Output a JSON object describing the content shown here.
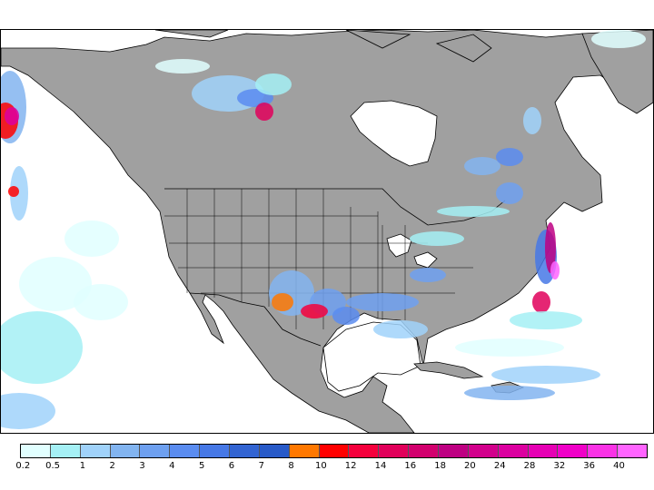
{
  "legend": {
    "labels": [
      "0.2",
      "0.5",
      "1",
      "2",
      "3",
      "4",
      "5",
      "6",
      "7",
      "8",
      "10",
      "12",
      "14",
      "16",
      "18",
      "20",
      "24",
      "28",
      "32",
      "36",
      "40"
    ],
    "colors": [
      "#e1ffff",
      "#a5f0f5",
      "#a0d2fa",
      "#82b4f0",
      "#6ea0f0",
      "#5a8cf0",
      "#4678e6",
      "#3264d2",
      "#285ac8",
      "#ff7800",
      "#ff0000",
      "#f5003c",
      "#e1005a",
      "#d2006e",
      "#be0082",
      "#d2008c",
      "#dc00a0",
      "#e600b4",
      "#f000c8",
      "#fa32e6",
      "#ff64ff"
    ]
  },
  "map": {
    "land_color": "#a0a0a0",
    "ocean_color": "#ffffff",
    "border_color": "#000000"
  }
}
